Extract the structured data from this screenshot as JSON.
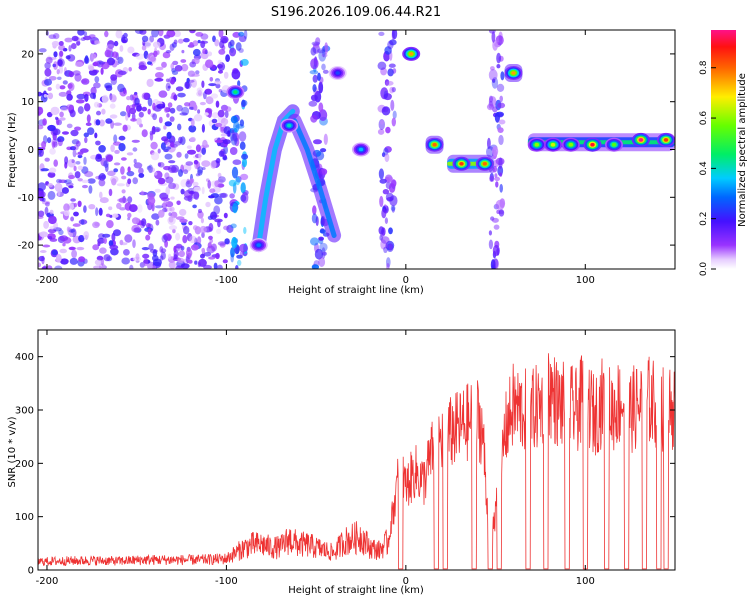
{
  "title": "S196.2026.109.06.44.R21",
  "chart_data": [
    {
      "type": "heatmap",
      "title": "S196.2026.109.06.44.R21",
      "xlabel": "Height of straight line (km)",
      "ylabel": "Frequency (Hz)",
      "xlim": [
        -205,
        150
      ],
      "ylim": [
        -25,
        25
      ],
      "xticks": [
        -200,
        -100,
        0,
        100
      ],
      "yticks": [
        -20,
        -10,
        0,
        10,
        20
      ],
      "colorbar": {
        "label": "Normalized spectral amplitude",
        "range": [
          0,
          0.95
        ],
        "ticks": [
          0.0,
          0.2,
          0.4,
          0.6,
          0.8
        ]
      },
      "noise_region": {
        "x_range": [
          -205,
          -98
        ],
        "freq_range": [
          -25,
          25
        ],
        "level": 0.15
      },
      "streaks": [
        {
          "x": -93,
          "freq_range": [
            -25,
            25
          ],
          "amplitude": 0.3
        },
        {
          "x": -48,
          "freq_range": [
            -25,
            25
          ],
          "amplitude": 0.25
        },
        {
          "x": -10,
          "freq_range": [
            -25,
            25
          ],
          "amplitude": 0.2
        },
        {
          "x": 50,
          "freq_range": [
            -25,
            25
          ],
          "amplitude": 0.2
        }
      ],
      "arcs": [
        {
          "points": [
            [
              -82,
              -20
            ],
            [
              -78,
              -10
            ],
            [
              -73,
              0
            ],
            [
              -68,
              6
            ],
            [
              -63,
              8
            ]
          ],
          "amplitude": 0.35
        },
        {
          "points": [
            [
              -62,
              6
            ],
            [
              -55,
              0
            ],
            [
              -48,
              -8
            ],
            [
              -40,
              -18
            ]
          ],
          "amplitude": 0.3
        }
      ],
      "peaks": [
        {
          "x": -95,
          "freq": 12,
          "amplitude": 0.45
        },
        {
          "x": -65,
          "freq": 5,
          "amplitude": 0.4
        },
        {
          "x": -82,
          "freq": -20,
          "amplitude": 0.3
        },
        {
          "x": -25,
          "freq": 0,
          "amplitude": 0.35
        },
        {
          "x": -38,
          "freq": 16,
          "amplitude": 0.25
        },
        {
          "x": 3,
          "freq": 20,
          "amplitude": 0.75
        },
        {
          "x": 16,
          "freq": 1,
          "amplitude": 0.8
        },
        {
          "x": 31,
          "freq": -3,
          "amplitude": 0.85
        },
        {
          "x": 44,
          "freq": -3,
          "amplitude": 0.8
        },
        {
          "x": 60,
          "freq": 16,
          "amplitude": 0.75
        },
        {
          "x": 73,
          "freq": 1,
          "amplitude": 0.6
        },
        {
          "x": 82,
          "freq": 1,
          "amplitude": 0.65
        },
        {
          "x": 92,
          "freq": 1,
          "amplitude": 0.6
        },
        {
          "x": 104,
          "freq": 1,
          "amplitude": 0.9
        },
        {
          "x": 116,
          "freq": 1,
          "amplitude": 0.55
        },
        {
          "x": 131,
          "freq": 2,
          "amplitude": 0.95
        },
        {
          "x": 145,
          "freq": 2,
          "amplitude": 0.85
        }
      ],
      "bands": [
        {
          "x_range": [
            11,
            21
          ],
          "freq": 1,
          "amplitude": 0.6
        },
        {
          "x_range": [
            23,
            49
          ],
          "freq": -3,
          "amplitude": 0.6
        },
        {
          "x_range": [
            55,
            65
          ],
          "freq": 16,
          "amplitude": 0.6
        },
        {
          "x_range": [
            68,
            150
          ],
          "freq": 1.5,
          "amplitude": 0.45
        }
      ]
    },
    {
      "type": "line",
      "xlabel": "Height of straight line (km)",
      "ylabel": "SNR (10 * v/v)",
      "xlim": [
        -205,
        150
      ],
      "ylim": [
        0,
        450
      ],
      "xticks": [
        -200,
        -100,
        0,
        100
      ],
      "yticks": [
        0,
        100,
        200,
        300,
        400
      ],
      "color": "#ee3333",
      "series": [
        {
          "name": "SNR",
          "x": [
            -205,
            -190,
            -175,
            -160,
            -145,
            -130,
            -115,
            -100,
            -95,
            -90,
            -85,
            -80,
            -75,
            -70,
            -65,
            -60,
            -55,
            -50,
            -45,
            -40,
            -35,
            -30,
            -25,
            -20,
            -15,
            -10,
            -5,
            -3,
            0,
            5,
            10,
            15,
            20,
            25,
            30,
            35,
            40,
            43,
            45,
            48,
            50,
            53,
            55,
            60,
            65,
            70,
            75,
            80,
            85,
            90,
            95,
            100,
            105,
            110,
            115,
            120,
            125,
            130,
            135,
            140,
            145,
            150
          ],
          "values": [
            15,
            16,
            17,
            16,
            18,
            18,
            18,
            20,
            30,
            40,
            45,
            45,
            40,
            40,
            55,
            45,
            45,
            40,
            35,
            30,
            50,
            55,
            60,
            40,
            35,
            50,
            150,
            200,
            150,
            180,
            160,
            220,
            240,
            250,
            260,
            270,
            280,
            250,
            120,
            90,
            100,
            180,
            250,
            300,
            290,
            290,
            300,
            330,
            300,
            300,
            290,
            320,
            280,
            310,
            290,
            310,
            290,
            300,
            310,
            300,
            290,
            300
          ]
        }
      ],
      "dropouts_x": [
        -3,
        17,
        22,
        38,
        47,
        52,
        68,
        78,
        90,
        100,
        112,
        123,
        133,
        141,
        145
      ]
    }
  ]
}
